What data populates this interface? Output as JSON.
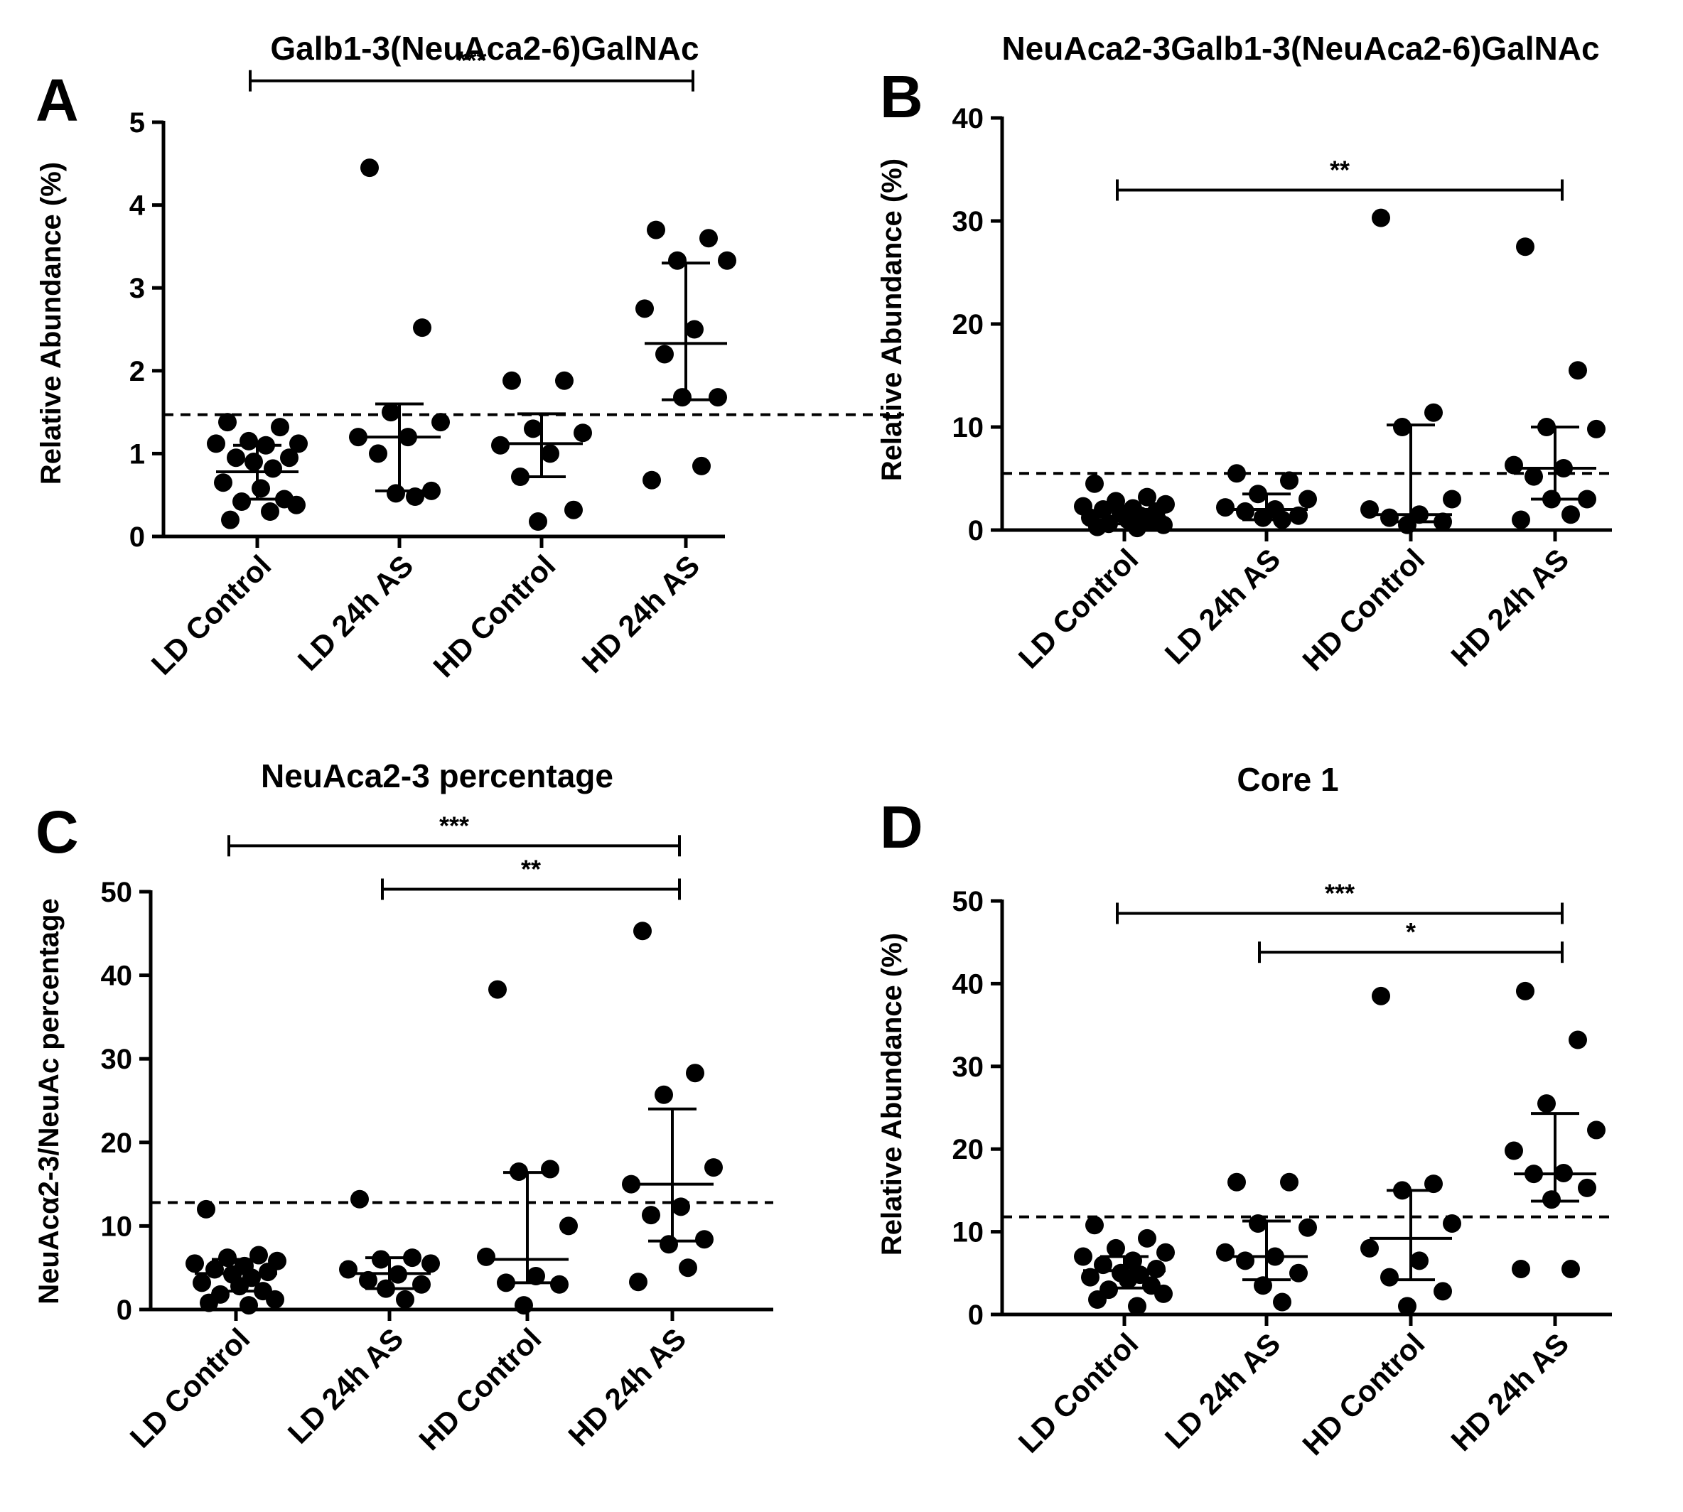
{
  "figure": {
    "panels": [
      {
        "letter": "A",
        "title": "Galb1-3(NeuAca2-6)GalNAc"
      },
      {
        "letter": "B",
        "title": "NeuAca2-3Galb1-3(NeuAca2-6)GalNAc"
      },
      {
        "letter": "C",
        "title": "NeuAca2-3 percentage"
      },
      {
        "letter": "D",
        "title": "Core 1"
      }
    ]
  },
  "chart_data": [
    {
      "type": "scatter",
      "title": "Galb1-3(NeuAca2-6)GalNAc",
      "panel": "A",
      "ylabel": "Relative Abundance (%)",
      "ylim": [
        0,
        5
      ],
      "yticks": [
        "0",
        "1",
        "2",
        "3",
        "4",
        "5"
      ],
      "yticks_values": [
        0,
        1,
        2,
        3,
        4,
        5
      ],
      "categories": [
        "LD Control",
        "LD 24h AS",
        "HD Control",
        "HD 24h AS"
      ],
      "reference_line": 1.47,
      "groups": [
        {
          "name": "LD Control",
          "median": 0.78,
          "q1": 0.45,
          "q3": 1.1,
          "points": [
            1.38,
            1.32,
            1.15,
            1.12,
            1.12,
            1.1,
            0.95,
            0.95,
            0.9,
            0.82,
            0.65,
            0.58,
            0.45,
            0.42,
            0.38,
            0.2,
            0.3
          ]
        },
        {
          "name": "LD 24h AS",
          "median": 1.2,
          "q1": 0.55,
          "q3": 1.6,
          "points": [
            4.45,
            2.52,
            1.5,
            1.38,
            1.2,
            1.2,
            1.0,
            0.55,
            0.52,
            0.48
          ]
        },
        {
          "name": "HD Control",
          "median": 1.12,
          "q1": 0.72,
          "q3": 1.48,
          "points": [
            1.88,
            1.88,
            1.3,
            1.25,
            1.1,
            1.0,
            0.72,
            0.32,
            0.18
          ]
        },
        {
          "name": "HD 24h AS",
          "median": 2.33,
          "q1": 1.65,
          "q3": 3.3,
          "points": [
            3.7,
            3.6,
            3.33,
            3.33,
            2.75,
            2.5,
            2.2,
            1.68,
            1.68,
            0.85,
            0.68
          ]
        }
      ],
      "significance": [
        {
          "from": "LD Control",
          "to": "HD 24h AS",
          "label": "***",
          "level": 5.5
        }
      ]
    },
    {
      "type": "scatter",
      "title": "NeuAca2-3Galb1-3(NeuAca2-6)GalNAc",
      "panel": "B",
      "ylabel": "Relative Abundance (%)",
      "ylim": [
        0,
        40
      ],
      "yticks": [
        "0",
        "10",
        "20",
        "30",
        "40"
      ],
      "yticks_values": [
        0,
        10,
        20,
        30,
        40
      ],
      "categories": [
        "LD Control",
        "LD 24h AS",
        "HD Control",
        "HD 24h AS"
      ],
      "reference_line": 5.5,
      "groups": [
        {
          "name": "LD Control",
          "median": 1.3,
          "q1": 0.6,
          "q3": 2.0,
          "points": [
            4.5,
            3.2,
            2.8,
            2.5,
            2.3,
            2.1,
            2.0,
            1.8,
            1.6,
            1.4,
            1.2,
            1.0,
            0.8,
            0.6,
            0.5,
            0.3,
            0.2
          ]
        },
        {
          "name": "LD 24h AS",
          "median": 2.0,
          "q1": 1.0,
          "q3": 3.5,
          "points": [
            5.5,
            4.8,
            3.5,
            3.0,
            2.2,
            2.0,
            1.8,
            1.4,
            1.2,
            1.0
          ]
        },
        {
          "name": "HD Control",
          "median": 1.5,
          "q1": 0.8,
          "q3": 10.2,
          "points": [
            30.3,
            11.4,
            10.0,
            3.0,
            2.0,
            1.5,
            1.2,
            0.8,
            0.5
          ]
        },
        {
          "name": "HD 24h AS",
          "median": 6.0,
          "q1": 3.0,
          "q3": 10.0,
          "points": [
            27.5,
            15.5,
            10.0,
            9.8,
            6.3,
            6.0,
            5.2,
            3.0,
            3.0,
            1.5,
            1.0
          ]
        }
      ],
      "significance": [
        {
          "from": "LD Control",
          "to": "HD 24h AS",
          "label": "**",
          "level": 33
        }
      ]
    },
    {
      "type": "scatter",
      "title": "NeuAca2-3 percentage",
      "panel": "C",
      "ylabel": "NeuAcα2-3/NeuAc percentage",
      "ylim": [
        0,
        50
      ],
      "yticks": [
        "0",
        "10",
        "20",
        "30",
        "40",
        "50"
      ],
      "yticks_values": [
        0,
        10,
        20,
        30,
        40,
        50
      ],
      "categories": [
        "LD Control",
        "LD 24h AS",
        "HD Control",
        "HD 24h AS"
      ],
      "reference_line": 12.8,
      "groups": [
        {
          "name": "LD Control",
          "median": 4.3,
          "q1": 2.2,
          "q3": 6.0,
          "points": [
            12.0,
            6.5,
            6.2,
            5.8,
            5.5,
            5.2,
            4.8,
            4.5,
            4.2,
            3.8,
            3.2,
            2.8,
            2.2,
            1.8,
            1.2,
            0.8,
            0.5
          ]
        },
        {
          "name": "LD 24h AS",
          "median": 4.3,
          "q1": 2.5,
          "q3": 6.2,
          "points": [
            13.2,
            6.2,
            6.0,
            5.5,
            4.8,
            4.2,
            3.5,
            3.0,
            2.5,
            1.2
          ]
        },
        {
          "name": "HD Control",
          "median": 6.0,
          "q1": 3.2,
          "q3": 16.4,
          "points": [
            38.3,
            16.8,
            16.5,
            10.0,
            6.3,
            4.0,
            3.2,
            3.0,
            0.5
          ]
        },
        {
          "name": "HD 24h AS",
          "median": 15.0,
          "q1": 8.2,
          "q3": 24.0,
          "points": [
            45.3,
            28.3,
            25.7,
            17.0,
            15.0,
            12.3,
            11.3,
            8.4,
            7.8,
            5.0,
            3.3
          ]
        }
      ],
      "significance": [
        {
          "from": "LD Control",
          "to": "HD 24h AS",
          "label": "***",
          "level": 55.5
        },
        {
          "from": "LD 24h AS",
          "to": "HD 24h AS",
          "label": "**",
          "level": 50.3
        }
      ]
    },
    {
      "type": "scatter",
      "title": "Core 1",
      "panel": "D",
      "ylabel": "Relative Abundance (%)",
      "ylim": [
        0,
        50
      ],
      "yticks": [
        "0",
        "10",
        "20",
        "30",
        "40",
        "50"
      ],
      "yticks_values": [
        0,
        10,
        20,
        30,
        40,
        50
      ],
      "categories": [
        "LD Control",
        "LD 24h AS",
        "HD Control",
        "HD 24h AS"
      ],
      "reference_line": 11.8,
      "groups": [
        {
          "name": "LD Control",
          "median": 5.3,
          "q1": 3.2,
          "q3": 7.0,
          "points": [
            10.8,
            9.2,
            8.0,
            7.5,
            7.0,
            6.5,
            6.0,
            5.5,
            5.0,
            4.8,
            4.5,
            4.2,
            3.5,
            3.0,
            2.5,
            1.8,
            1.0
          ]
        },
        {
          "name": "LD 24h AS",
          "median": 7.0,
          "q1": 4.2,
          "q3": 11.3,
          "points": [
            16.0,
            16.0,
            11.0,
            10.5,
            7.5,
            7.0,
            6.5,
            5.0,
            3.5,
            1.5
          ]
        },
        {
          "name": "HD Control",
          "median": 9.2,
          "q1": 4.2,
          "q3": 15.0,
          "points": [
            38.5,
            15.8,
            15.0,
            11.0,
            8.0,
            6.5,
            4.5,
            2.8,
            1.0
          ]
        },
        {
          "name": "HD 24h AS",
          "median": 17.0,
          "q1": 13.7,
          "q3": 24.3,
          "points": [
            39.1,
            33.2,
            25.5,
            22.3,
            19.8,
            17.1,
            17.0,
            15.3,
            13.9,
            5.5,
            5.5
          ]
        }
      ],
      "significance": [
        {
          "from": "LD Control",
          "to": "HD 24h AS",
          "label": "***",
          "level": 48.5
        },
        {
          "from": "LD 24h AS",
          "to": "HD 24h AS",
          "label": "*",
          "level": 43.8
        }
      ]
    }
  ]
}
